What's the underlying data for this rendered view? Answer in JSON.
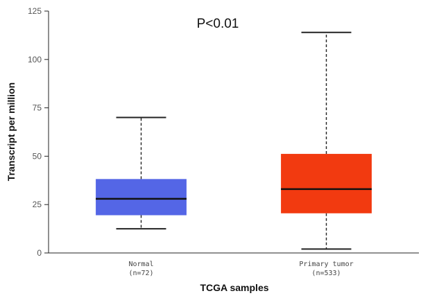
{
  "chart_data": {
    "type": "box",
    "annotation": "P<0.01",
    "xlabel": "TCGA samples",
    "ylabel": "Transcript per million",
    "ylim": [
      0,
      125
    ],
    "yticks": [
      0,
      25,
      50,
      75,
      100,
      125
    ],
    "grid": false,
    "categories": [
      {
        "label": "Normal",
        "sublabel": "(n=72)",
        "color": "#5466e6",
        "min": 12.5,
        "q1": 19.5,
        "median": 28,
        "q3": 38.2,
        "max": 70
      },
      {
        "label": "Primary tumor",
        "sublabel": "(n=533)",
        "color": "#f23a10",
        "min": 2,
        "q1": 20.5,
        "median": 33,
        "q3": 51.2,
        "max": 114
      }
    ]
  }
}
